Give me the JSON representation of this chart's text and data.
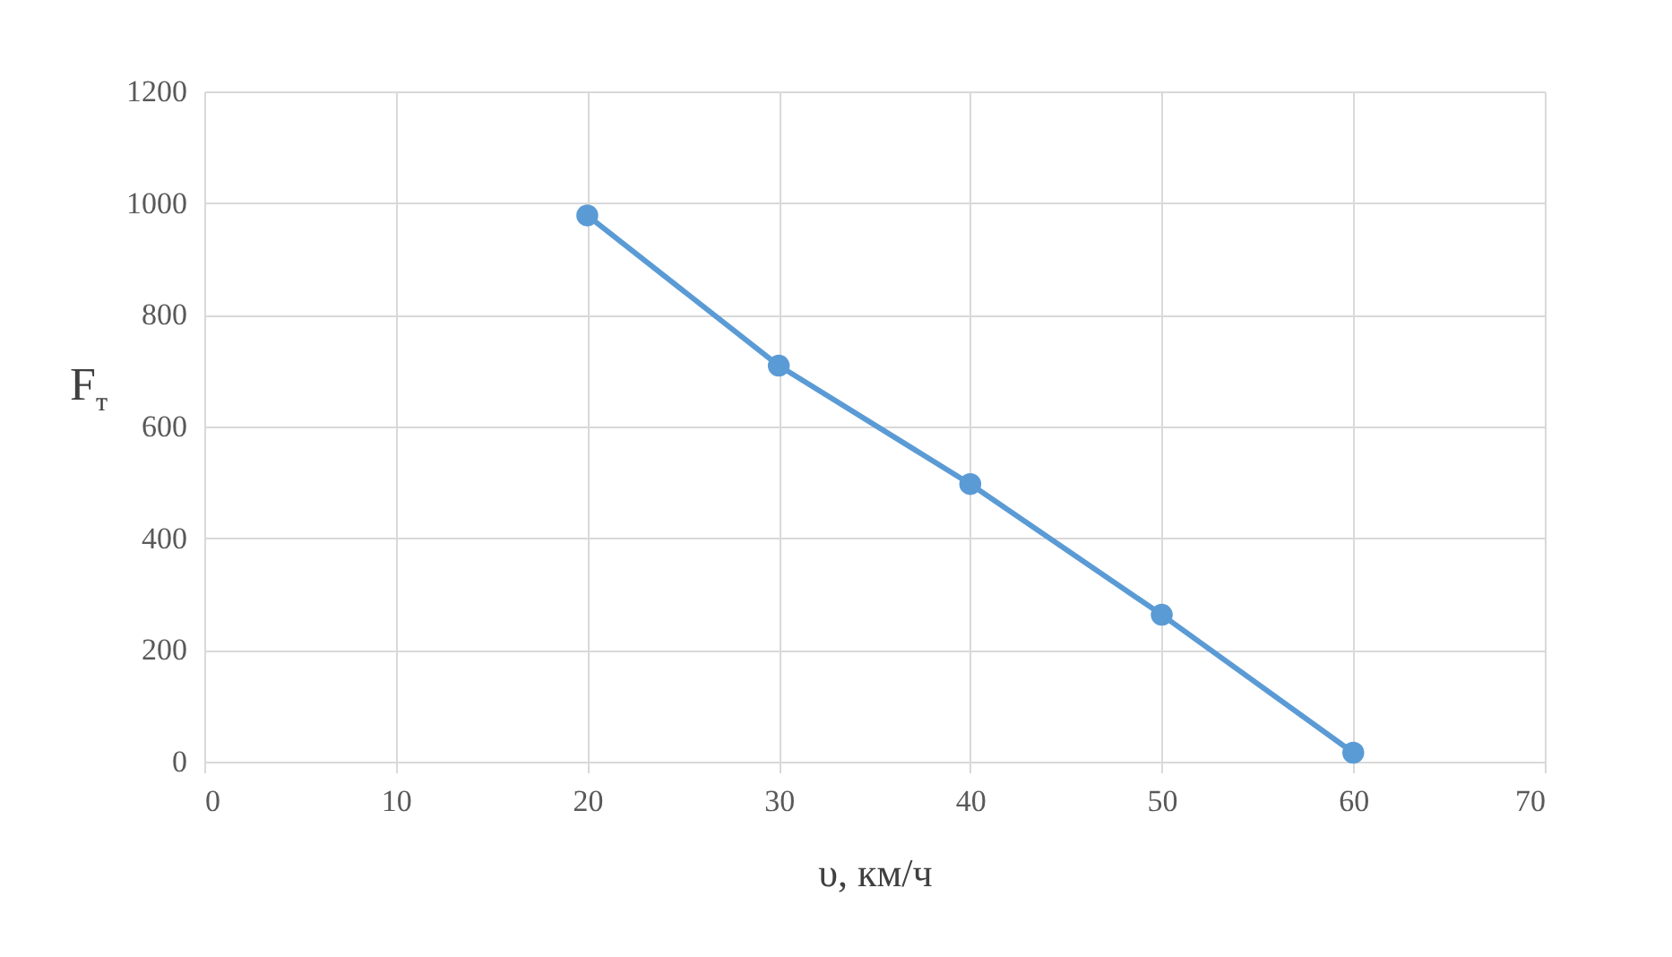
{
  "chart_data": {
    "type": "line",
    "xlabel": "υ, км/ч",
    "ylabel": "F$_{т}$",
    "x": [
      20,
      30,
      40,
      50,
      60
    ],
    "series": [
      {
        "color": "#5b9bd5",
        "values": [
          978,
          709,
          497,
          263,
          16
        ]
      }
    ],
    "xlim": [
      0,
      70
    ],
    "xticks": [
      0,
      10,
      20,
      30,
      40,
      50,
      60,
      70
    ],
    "ylim": [
      0,
      1200
    ],
    "yticks": [
      0,
      200,
      400,
      600,
      800,
      1000,
      1200
    ],
    "grid": true,
    "marker": "circle",
    "line_style": "solid"
  }
}
